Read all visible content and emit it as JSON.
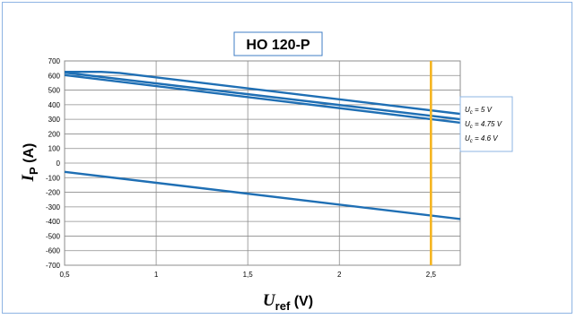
{
  "chart_data": {
    "type": "line",
    "title": "HO 120-P",
    "ylabel": {
      "symbol": "I",
      "sub": "P",
      "unit": " (A)"
    },
    "xlabel": {
      "symbol": "U",
      "sub": "ref",
      "unit": " (V)"
    },
    "xlim": [
      0.5,
      2.66
    ],
    "ylim": [
      -700,
      700
    ],
    "xticks": [
      0.5,
      1,
      1.5,
      2,
      2.5
    ],
    "xtick_labels": [
      "0,5",
      "1",
      "1,5",
      "2",
      "2,5"
    ],
    "yticks": [
      700,
      600,
      500,
      400,
      300,
      200,
      100,
      0,
      -100,
      -200,
      -300,
      -400,
      -500,
      -600,
      -700
    ],
    "ytick_labels": [
      "700",
      "600",
      "500",
      "400",
      "300",
      "200",
      "100",
      "0",
      "-100",
      "-200",
      "-300",
      "-400",
      "-500",
      "-600",
      "-700"
    ],
    "grid": true,
    "series_color": "#1f6fb4",
    "marker_color": "#f5b41f",
    "series": [
      {
        "name": "Uc = 5 V",
        "x": [
          0.5,
          0.7,
          0.8,
          2.66
        ],
        "y": [
          625,
          625,
          618,
          337
        ]
      },
      {
        "name": "Uc = 4.75 V",
        "x": [
          0.5,
          2.66
        ],
        "y": [
          620,
          300
        ]
      },
      {
        "name": "Uc = 4.6 V",
        "x": [
          0.5,
          2.66
        ],
        "y": [
          603,
          277
        ]
      },
      {
        "name": "",
        "x": [
          0.5,
          2.66
        ],
        "y": [
          -60,
          -383
        ]
      }
    ],
    "vline_x": 2.5,
    "legend": [
      {
        "symbol": "U",
        "sub": "c",
        "text": " = 5 V"
      },
      {
        "symbol": "U",
        "sub": "c",
        "text": " = 4.75 V"
      },
      {
        "symbol": "U",
        "sub": "c",
        "text": " = 4.6 V"
      }
    ],
    "legend_placement": "right"
  }
}
